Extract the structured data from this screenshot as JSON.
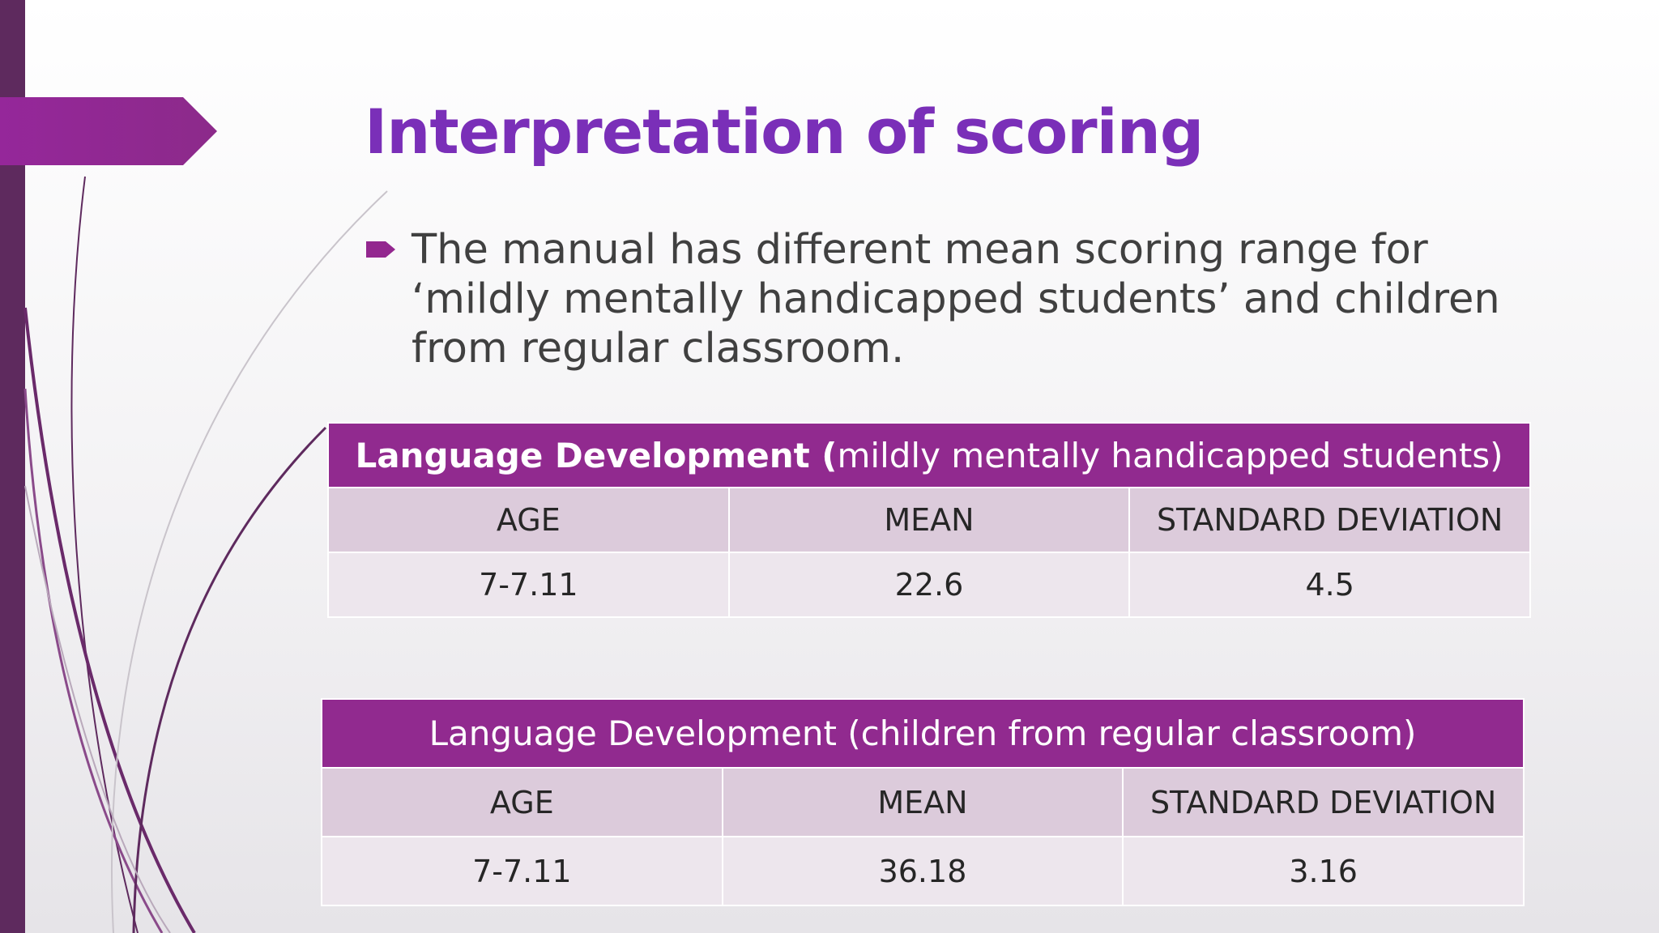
{
  "title": "Interpretation of scoring",
  "bullets": [
    "The manual has different mean scoring range for ‘mildly mentally handicapped students’ and children from regular classroom."
  ],
  "tables": [
    {
      "caption_bold": "Language Development  (",
      "caption": "mildly mentally handicapped students)",
      "header": [
        "AGE",
        "MEAN",
        "STANDARD DEVIATION"
      ],
      "rows": [
        [
          "7-7.11",
          "22.6",
          "4.5"
        ]
      ]
    },
    {
      "caption": "Language Development (children from regular classroom)",
      "header": [
        "AGE",
        "MEAN",
        "STANDARD DEVIATION"
      ],
      "rows": [
        [
          "7-7.11",
          "36.18",
          "3.16"
        ]
      ]
    }
  ]
}
